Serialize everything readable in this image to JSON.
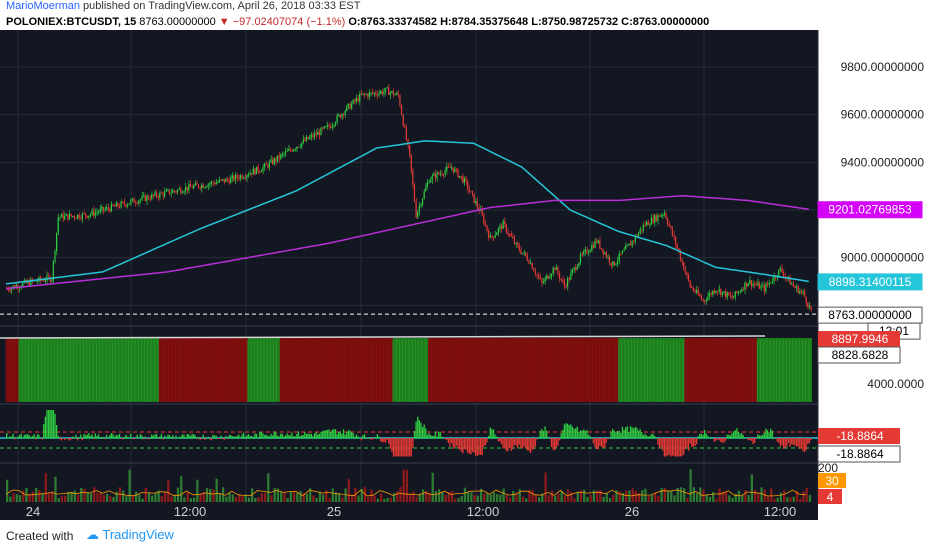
{
  "header": {
    "author": "MarioMoerman",
    "published_text": " published on TradingView.com, April 26, 2018 03:33 EST",
    "symbol": "POLONIEX:BTCUSDT, 15",
    "last": "8763.00000000",
    "change": "▼ −97.02407074 (−1.1%)",
    "open": "O:8763.33374582",
    "high": "H:8784.35375648",
    "low": "L:8750.98725732",
    "close": "C:8763.00000000"
  },
  "footer": {
    "created_with": "Created with",
    "brand": "TradingView"
  },
  "colors": {
    "bg": "#131722",
    "up": "#26a69a",
    "green": "#2ecc40",
    "red": "#e53935",
    "ma_fast": "#26c6da",
    "ma_slow": "#ba2fd6"
  },
  "chart_data": {
    "type": "candlestick",
    "price_axis": [
      "9800.00000000",
      "9600.00000000",
      "9400.00000000",
      "9000.00000000"
    ],
    "price_range": [
      8730,
      9930
    ],
    "time_ticks": [
      "24",
      "12:00",
      "25",
      "12:00",
      "26",
      "12:00"
    ],
    "price_markers": [
      {
        "label": "9201.02769853",
        "value": 9201.03,
        "color": "#d500f9"
      },
      {
        "label": "8898.31400115",
        "value": 8898.31,
        "color": "#26c6da"
      },
      {
        "label": "8763.00000000",
        "value": 8763.0,
        "color": "#ffffff"
      }
    ],
    "countdown": "12:01",
    "close_keypoints": [
      [
        0,
        8870
      ],
      [
        10,
        8890
      ],
      [
        20,
        8905
      ],
      [
        28,
        8915
      ],
      [
        32,
        9170
      ],
      [
        50,
        9180
      ],
      [
        80,
        9240
      ],
      [
        110,
        9290
      ],
      [
        140,
        9330
      ],
      [
        160,
        9380
      ],
      [
        180,
        9470
      ],
      [
        200,
        9550
      ],
      [
        210,
        9620
      ],
      [
        220,
        9680
      ],
      [
        236,
        9700
      ],
      [
        243,
        9680
      ],
      [
        250,
        9420
      ],
      [
        254,
        9180
      ],
      [
        262,
        9330
      ],
      [
        276,
        9380
      ],
      [
        284,
        9320
      ],
      [
        294,
        9190
      ],
      [
        300,
        9080
      ],
      [
        308,
        9140
      ],
      [
        316,
        9050
      ],
      [
        324,
        8990
      ],
      [
        332,
        8890
      ],
      [
        340,
        8960
      ],
      [
        346,
        8880
      ],
      [
        356,
        9000
      ],
      [
        366,
        9070
      ],
      [
        376,
        8970
      ],
      [
        386,
        9050
      ],
      [
        396,
        9140
      ],
      [
        408,
        9190
      ],
      [
        416,
        9040
      ],
      [
        424,
        8880
      ],
      [
        432,
        8820
      ],
      [
        440,
        8870
      ],
      [
        450,
        8830
      ],
      [
        460,
        8900
      ],
      [
        470,
        8870
      ],
      [
        480,
        8950
      ],
      [
        488,
        8880
      ],
      [
        494,
        8850
      ],
      [
        500,
        8763
      ]
    ],
    "ma_fast_keypoints": [
      [
        0,
        8890
      ],
      [
        60,
        8940
      ],
      [
        120,
        9120
      ],
      [
        180,
        9280
      ],
      [
        230,
        9460
      ],
      [
        260,
        9490
      ],
      [
        290,
        9480
      ],
      [
        320,
        9380
      ],
      [
        350,
        9200
      ],
      [
        380,
        9110
      ],
      [
        410,
        9050
      ],
      [
        440,
        8960
      ],
      [
        470,
        8930
      ],
      [
        500,
        8898
      ]
    ],
    "ma_slow_keypoints": [
      [
        0,
        8870
      ],
      [
        100,
        8940
      ],
      [
        200,
        9060
      ],
      [
        260,
        9150
      ],
      [
        300,
        9210
      ],
      [
        340,
        9240
      ],
      [
        380,
        9240
      ],
      [
        420,
        9260
      ],
      [
        460,
        9240
      ],
      [
        500,
        9201
      ]
    ],
    "vol_axis": [
      "4000.0000"
    ],
    "vol_markers": [
      {
        "label": "8897.9946",
        "color": "#e53935"
      },
      {
        "label": "8828.6828",
        "color": "#ffffff"
      }
    ],
    "vol_segments": [
      [
        0,
        8,
        "red"
      ],
      [
        8,
        95,
        "green"
      ],
      [
        95,
        150,
        "red"
      ],
      [
        150,
        170,
        "green"
      ],
      [
        170,
        240,
        "red"
      ],
      [
        240,
        262,
        "green"
      ],
      [
        262,
        380,
        "red"
      ],
      [
        380,
        421,
        "green"
      ],
      [
        421,
        466,
        "red"
      ],
      [
        466,
        500,
        "green"
      ]
    ],
    "osc_markers": [
      {
        "label": "-18.8864",
        "color": "#e53935"
      },
      {
        "label": "-18.8864",
        "color": "#ffffff"
      }
    ],
    "bottom_axis": [
      "200"
    ],
    "bottom_markers": [
      {
        "label": "30",
        "color": "#ff9800"
      },
      {
        "label": "4",
        "color": "#e53935"
      }
    ]
  }
}
